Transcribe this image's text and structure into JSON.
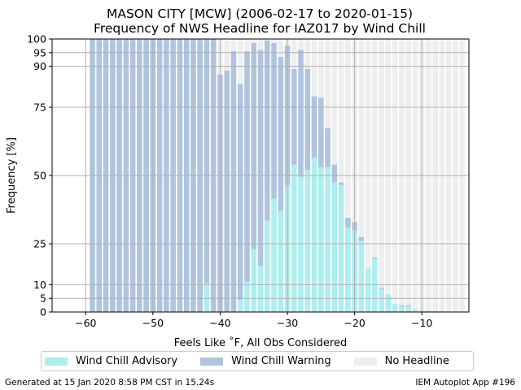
{
  "chart_data": {
    "type": "bar",
    "title": "MASON CITY [MCW] (2006-02-17 to 2020-01-15)",
    "subtitle": "Frequency of NWS Headline for IAZ017 by Wind Chill",
    "xlabel": "Feels Like ˚F, All Obs Considered",
    "ylabel": "Frequency [%]",
    "xlim": [
      -65,
      -3
    ],
    "ylim": [
      0,
      100
    ],
    "x_ticks": [
      -60,
      -50,
      -40,
      -30,
      -20,
      -10
    ],
    "x_tick_labels": [
      "−60",
      "−50",
      "−40",
      "−30",
      "−20",
      "−10"
    ],
    "y_ticks": [
      0,
      5,
      10,
      25,
      50,
      75,
      90,
      95,
      100
    ],
    "grid": true,
    "legend_position": "bottom",
    "x": [
      -59,
      -58,
      -57,
      -56,
      -55,
      -54,
      -53,
      -52,
      -51,
      -50,
      -49,
      -48,
      -47,
      -46,
      -45,
      -44,
      -43,
      -42,
      -41,
      -40,
      -39,
      -38,
      -37,
      -36,
      -35,
      -34,
      -33,
      -32,
      -31,
      -30,
      -29,
      -28,
      -27,
      -26,
      -25,
      -24,
      -23,
      -22,
      -21,
      -20,
      -19,
      -18,
      -17,
      -16,
      -15,
      -14,
      -13,
      -12,
      -11,
      -10,
      -9,
      -8,
      -7,
      -6,
      -5,
      -4
    ],
    "series": [
      {
        "name": "Wind Chill Advisory",
        "color": "#aeeeee",
        "values": [
          0,
          0,
          0,
          0,
          0,
          0,
          0,
          0,
          0,
          0,
          0,
          0,
          0,
          0,
          0,
          0,
          0,
          10.5,
          0,
          0,
          0,
          0,
          4.5,
          11,
          23,
          17,
          33.5,
          41.5,
          37,
          46.5,
          54,
          49.5,
          52,
          56.5,
          53,
          53,
          47.5,
          46.5,
          31,
          30,
          26,
          16,
          19.5,
          8.5,
          6.5,
          3,
          2,
          2,
          1,
          0.5,
          0.5,
          0.5,
          0.5,
          0,
          0,
          0
        ]
      },
      {
        "name": "Wind Chill Warning",
        "color": "#b0c4de",
        "values": [
          100,
          100,
          100,
          100,
          100,
          100,
          100,
          100,
          100,
          100,
          100,
          100,
          100,
          100,
          100,
          100,
          100,
          89.5,
          100,
          87,
          88.5,
          95.5,
          79,
          84.5,
          75.5,
          79,
          66,
          57,
          56.5,
          51,
          35,
          46.5,
          37,
          22.5,
          25.5,
          14.5,
          6.5,
          1,
          3.5,
          3,
          1.5,
          0,
          0.5,
          0.5,
          0,
          0,
          0.5,
          0.5,
          0,
          0,
          0,
          0,
          0,
          0,
          0,
          0
        ]
      },
      {
        "name": "No Headline",
        "color": "#eeeeee",
        "values": [
          0,
          0,
          0,
          0,
          0,
          0,
          0,
          0,
          0,
          0,
          0,
          0,
          0,
          0,
          0,
          0,
          0,
          0,
          0,
          13,
          11,
          4.5,
          16.5,
          4.5,
          1.5,
          4,
          0.5,
          1.5,
          6.5,
          2.5,
          11,
          4,
          11,
          21,
          21.5,
          32.5,
          46,
          52.5,
          65.5,
          67,
          72.5,
          84,
          80,
          91,
          93.5,
          97,
          97.5,
          97.5,
          99,
          99.5,
          99.5,
          99.5,
          99.5,
          100,
          100,
          100
        ]
      }
    ]
  },
  "legend": {
    "items": [
      {
        "label": "Wind Chill Advisory",
        "color": "#aeeeee"
      },
      {
        "label": "Wind Chill Warning",
        "color": "#b0c4de"
      },
      {
        "label": "No Headline",
        "color": "#eeeeee"
      }
    ]
  },
  "footer": {
    "left": "Generated at 15 Jan 2020 8:58 PM CST in 15.24s",
    "right": "IEM Autoplot App #196"
  }
}
